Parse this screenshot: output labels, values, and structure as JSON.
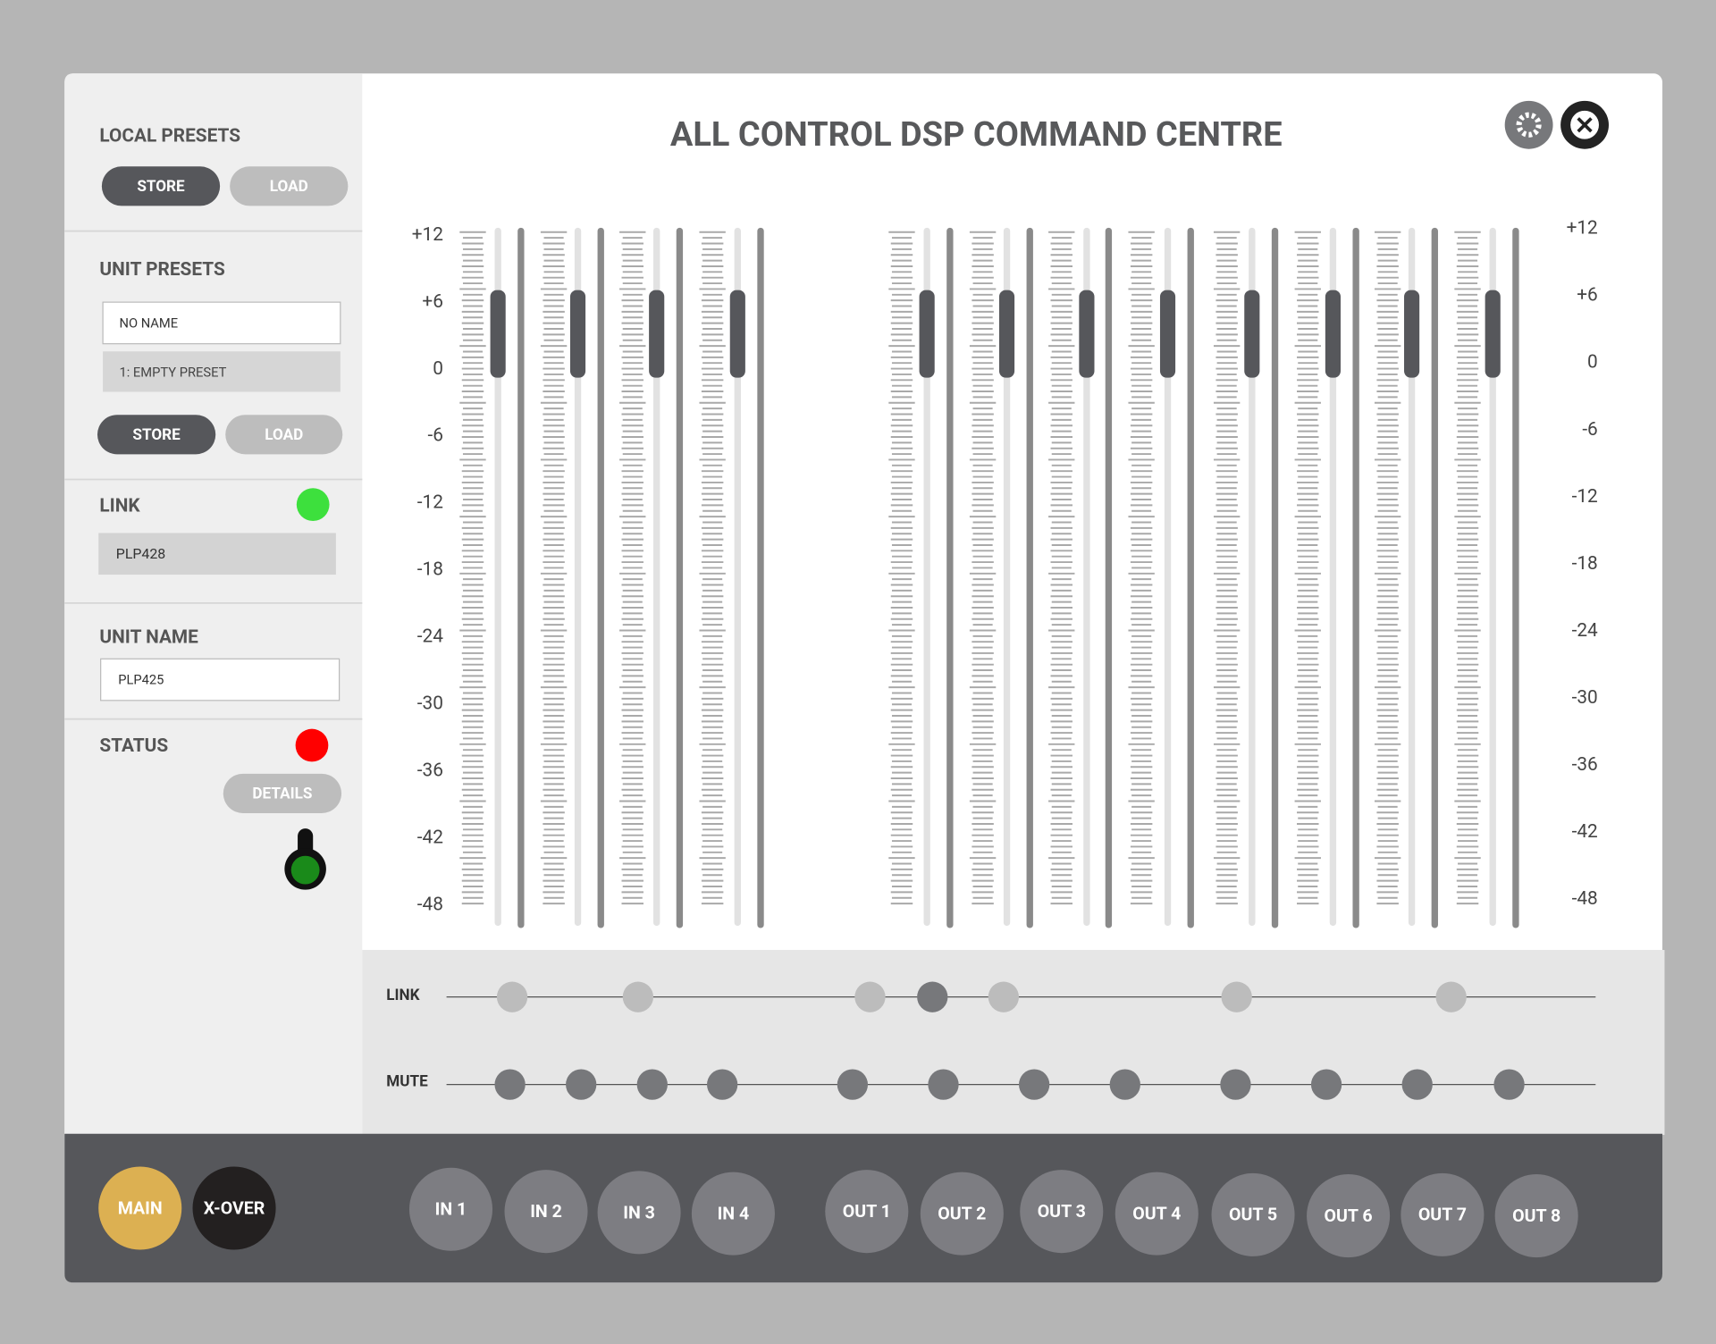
{
  "title": "ALL CONTROL DSP COMMAND CENTRE",
  "sidebar": {
    "local_presets": {
      "heading": "LOCAL PRESETS",
      "buttons": [
        "STORE",
        "LOAD"
      ]
    },
    "unit_presets": {
      "heading": "UNIT PRESETS",
      "name_field": "NO NAME",
      "preset": "1: EMPTY PRESET",
      "buttons": [
        "STORE",
        "LOAD"
      ]
    },
    "link": {
      "heading": "LINK",
      "device": "PLP428"
    },
    "unit_name": {
      "heading": "UNIT NAME",
      "field": "PLP425"
    },
    "status": {
      "heading": "STATUS",
      "button": "DETAILS"
    }
  },
  "scale": [
    "+12",
    "+6",
    "0",
    "-6",
    "-12",
    "-18",
    "-24",
    "-30",
    "-36",
    "-42",
    "-48"
  ],
  "rows": {
    "link": "LINK",
    "mute": "MUTE"
  },
  "nav": {
    "modes": [
      "MAIN",
      "X-OVER"
    ],
    "inputs": [
      "IN 1",
      "IN 2",
      "IN 3",
      "IN 4"
    ],
    "outputs": [
      "OUT 1",
      "OUT 2",
      "OUT 3",
      "OUT 4",
      "OUT 5",
      "OUT 6",
      "OUT 7",
      "OUT 8"
    ]
  }
}
